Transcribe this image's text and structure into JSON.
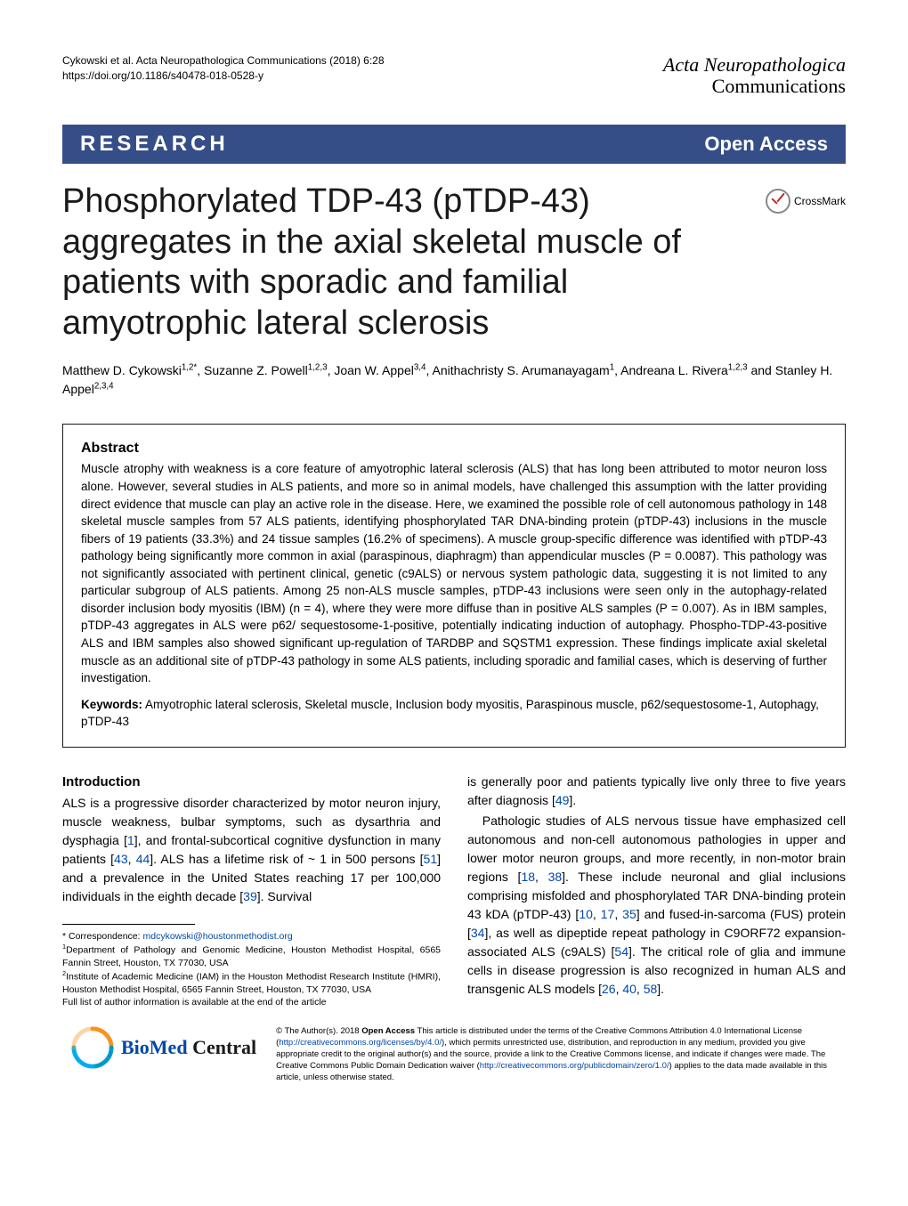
{
  "header": {
    "citation": "Cykowski et al. Acta Neuropathologica Communications  (2018) 6:28",
    "doi": "https://doi.org/10.1186/s40478-018-0528-y",
    "journal_line1": "Acta Neuropathologica",
    "journal_line2": "Communications"
  },
  "banner": {
    "left": "RESEARCH",
    "right": "Open Access"
  },
  "title": "Phosphorylated TDP-43 (pTDP-43) aggregates in the axial skeletal muscle of patients with sporadic and familial amyotrophic lateral sclerosis",
  "crossmark_label": "CrossMark",
  "authors_html": "Matthew D. Cykowski<sup>1,2*</sup>, Suzanne Z. Powell<sup>1,2,3</sup>, Joan W. Appel<sup>3,4</sup>, Anithachristy S. Arumanayagam<sup>1</sup>, Andreana L. Rivera<sup>1,2,3</sup> and Stanley H. Appel<sup>2,3,4</sup>",
  "abstract": {
    "title": "Abstract",
    "text": "Muscle atrophy with weakness is a core feature of amyotrophic lateral sclerosis (ALS) that has long been attributed to motor neuron loss alone. However, several studies in ALS patients, and more so in animal models, have challenged this assumption with the latter providing direct evidence that muscle can play an active role in the disease. Here, we examined the possible role of cell autonomous pathology in 148 skeletal muscle samples from 57 ALS patients, identifying phosphorylated TAR DNA-binding protein (pTDP-43) inclusions in the muscle fibers of 19 patients (33.3%) and 24 tissue samples (16.2% of specimens). A muscle group-specific difference was identified with pTDP-43 pathology being significantly more common in axial (paraspinous, diaphragm) than appendicular muscles (P = 0.0087). This pathology was not significantly associated with pertinent clinical, genetic (c9ALS) or nervous system pathologic data, suggesting it is not limited to any particular subgroup of ALS patients. Among 25 non-ALS muscle samples, pTDP-43 inclusions were seen only in the autophagy-related disorder inclusion body myositis (IBM) (n = 4), where they were more diffuse than in positive ALS samples (P = 0.007). As in IBM samples, pTDP-43 aggregates in ALS were p62/ sequestosome-1-positive, potentially indicating induction of autophagy. Phospho-TDP-43-positive ALS and IBM samples also showed significant up-regulation of TARDBP and SQSTM1 expression. These findings implicate axial skeletal muscle as an additional site of pTDP-43 pathology in some ALS patients, including sporadic and familial cases, which is deserving of further investigation.",
    "keywords_label": "Keywords:",
    "keywords": " Amyotrophic lateral sclerosis, Skeletal muscle, Inclusion body myositis, Paraspinous muscle, p62/sequestosome-1, Autophagy, pTDP-43"
  },
  "intro": {
    "title": "Introduction",
    "col1": "ALS is a progressive disorder characterized by motor neuron injury, muscle weakness, bulbar symptoms, such as dysarthria and dysphagia [1], and frontal-subcortical cognitive dysfunction in many patients [43, 44]. ALS has a lifetime risk of ~ 1 in 500 persons [51] and a prevalence in the United States reaching 17 per 100,000 individuals in the eighth decade [39]. Survival",
    "col2_p1": "is generally poor and patients typically live only three to five years after diagnosis [49].",
    "col2_p2": "Pathologic studies of ALS nervous tissue have emphasized cell autonomous and non-cell autonomous pathologies in upper and lower motor neuron groups, and more recently, in non-motor brain regions [18, 38]. These include neuronal and glial inclusions comprising misfolded and phosphorylated TAR DNA-binding protein 43 kDA (pTDP-43) [10, 17, 35] and fused-in-sarcoma (FUS) protein [34], as well as dipeptide repeat pathology in C9ORF72 expansion-associated ALS (c9ALS) [54]. The critical role of glia and immune cells in disease progression is also recognized in human ALS and transgenic ALS models [26, 40, 58]."
  },
  "correspondence": {
    "label": "* Correspondence: ",
    "email": "mdcykowski@houstonmethodist.org",
    "aff1": "Department of Pathology and Genomic Medicine, Houston Methodist Hospital, 6565 Fannin Street, Houston, TX 77030, USA",
    "aff2": "Institute of Academic Medicine (IAM) in the Houston Methodist Research Institute (HMRI), Houston Methodist Hospital, 6565 Fannin Street, Houston, TX 77030, USA",
    "full_list": "Full list of author information is available at the end of the article"
  },
  "bmc": {
    "logo_text": "BioMed Central"
  },
  "license": {
    "text_parts": {
      "p1": "© The Author(s). 2018 ",
      "open_access": "Open Access",
      "p2": " This article is distributed under the terms of the Creative Commons Attribution 4.0 International License (",
      "link1": "http://creativecommons.org/licenses/by/4.0/",
      "p3": "), which permits unrestricted use, distribution, and reproduction in any medium, provided you give appropriate credit to the original author(s) and the source, provide a link to the Creative Commons license, and indicate if changes were made. The Creative Commons Public Domain Dedication waiver (",
      "link2": "http://creativecommons.org/publicdomain/zero/1.0/",
      "p4": ") applies to the data made available in this article, unless otherwise stated."
    }
  },
  "refs": {
    "r1": "1",
    "r10": "10",
    "r17": "17",
    "r18": "18",
    "r26": "26",
    "r34": "34",
    "r35": "35",
    "r38": "38",
    "r39": "39",
    "r40": "40",
    "r43": "43",
    "r44": "44",
    "r49": "49",
    "r51": "51",
    "r54": "54",
    "r58": "58"
  },
  "colors": {
    "banner_bg": "#364e88",
    "link": "#0048a8",
    "crossmark_red": "#c02626",
    "bmc_orange": "#f7941e",
    "bmc_blue": "#00aeef"
  }
}
